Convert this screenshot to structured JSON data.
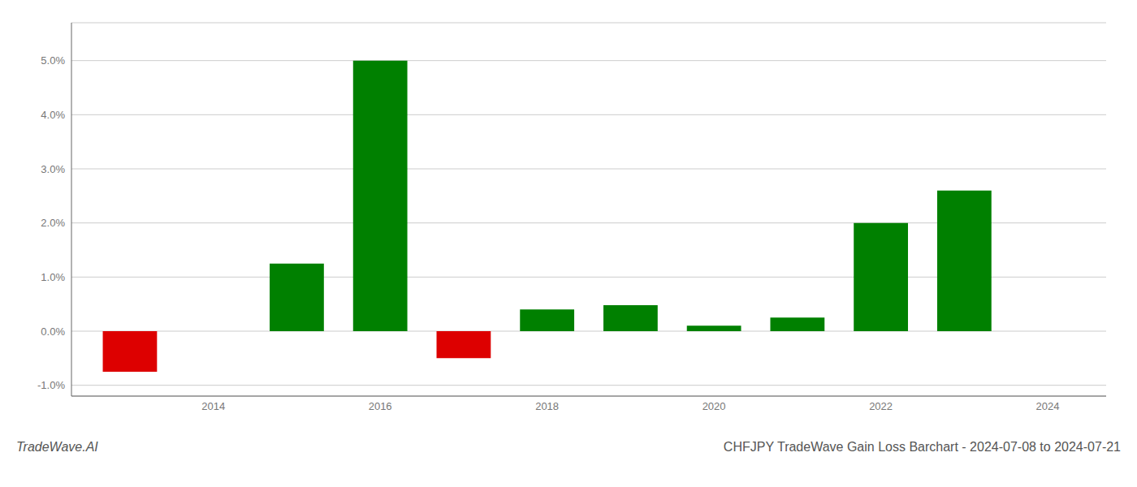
{
  "chart_data": {
    "type": "bar",
    "title": "CHFJPY TradeWave Gain Loss Barchart - 2024-07-08 to 2024-07-21",
    "annotations": [
      "TradeWave.AI"
    ],
    "x": [
      2013,
      2015,
      2016,
      2017,
      2018,
      2019,
      2020,
      2021,
      2022,
      2023
    ],
    "values": [
      -0.0075,
      0.0125,
      0.05,
      -0.005,
      0.004,
      0.0048,
      0.001,
      0.0025,
      0.02,
      0.026
    ],
    "colors": [
      "#dd0000",
      "#008000",
      "#008000",
      "#dd0000",
      "#008000",
      "#008000",
      "#008000",
      "#008000",
      "#008000",
      "#008000"
    ],
    "xlim": [
      2012.3,
      2024.7
    ],
    "xticks": [
      2014,
      2016,
      2018,
      2020,
      2022,
      2024
    ],
    "ylim": [
      -0.012,
      0.057
    ],
    "yticks": [
      {
        "value": -0.01,
        "label": "-1.0%"
      },
      {
        "value": 0.0,
        "label": "0.0%"
      },
      {
        "value": 0.01,
        "label": "1.0%"
      },
      {
        "value": 0.02,
        "label": "2.0%"
      },
      {
        "value": 0.03,
        "label": "3.0%"
      },
      {
        "value": 0.04,
        "label": "4.0%"
      },
      {
        "value": 0.05,
        "label": "5.0%"
      }
    ],
    "grid": true
  }
}
